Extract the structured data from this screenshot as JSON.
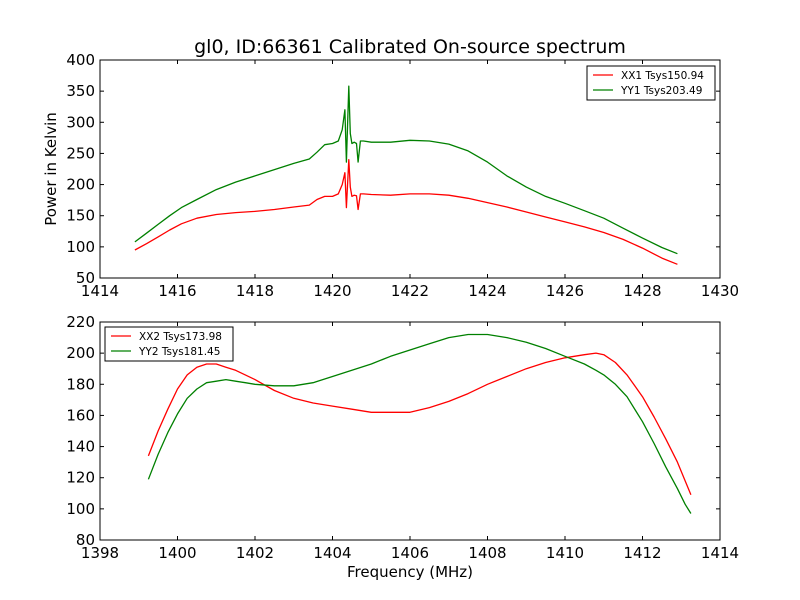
{
  "figure": {
    "title": "gl0, ID:66361 Calibrated On-source spectrum"
  },
  "chart_data": [
    {
      "type": "line",
      "title": "gl0, ID:66361 Calibrated On-source spectrum",
      "xlabel": "",
      "ylabel": "Power in Kelvin",
      "xlim": [
        1414,
        1430
      ],
      "ylim": [
        50,
        400
      ],
      "xticks": [
        1414,
        1416,
        1418,
        1420,
        1422,
        1424,
        1426,
        1428,
        1430
      ],
      "yticks": [
        50,
        100,
        150,
        200,
        250,
        300,
        350,
        400
      ],
      "grid": false,
      "legend": "top-right",
      "series": [
        {
          "name": "XX1 Tsys150.94",
          "color": "#ff0000",
          "x": [
            1414.9,
            1415.2,
            1415.5,
            1415.8,
            1416.1,
            1416.5,
            1417.0,
            1417.5,
            1418.0,
            1418.5,
            1419.0,
            1419.4,
            1419.6,
            1419.8,
            1420.0,
            1420.15,
            1420.25,
            1420.32,
            1420.36,
            1420.42,
            1420.46,
            1420.5,
            1420.56,
            1420.62,
            1420.66,
            1420.72,
            1420.8,
            1421.0,
            1421.5,
            1422.0,
            1422.5,
            1423.0,
            1423.5,
            1424.0,
            1424.5,
            1425.0,
            1425.5,
            1426.0,
            1426.5,
            1427.0,
            1427.5,
            1428.0,
            1428.5,
            1428.9
          ],
          "y": [
            95,
            105,
            116,
            127,
            137,
            146,
            152,
            155,
            157,
            160,
            164,
            167,
            176,
            181,
            181,
            185,
            200,
            219,
            163,
            240,
            196,
            181,
            183,
            182,
            160,
            185,
            185,
            184,
            183,
            185,
            185,
            183,
            178,
            171,
            164,
            156,
            148,
            140,
            132,
            123,
            112,
            98,
            82,
            72
          ]
        },
        {
          "name": "YY1 Tsys203.49",
          "color": "#008000",
          "x": [
            1414.9,
            1415.2,
            1415.5,
            1415.8,
            1416.1,
            1416.5,
            1417.0,
            1417.5,
            1418.0,
            1418.5,
            1419.0,
            1419.4,
            1419.6,
            1419.8,
            1420.0,
            1420.15,
            1420.25,
            1420.32,
            1420.36,
            1420.42,
            1420.46,
            1420.5,
            1420.56,
            1420.62,
            1420.66,
            1420.72,
            1420.8,
            1421.0,
            1421.5,
            1422.0,
            1422.5,
            1423.0,
            1423.5,
            1424.0,
            1424.5,
            1425.0,
            1425.5,
            1426.0,
            1426.5,
            1427.0,
            1427.5,
            1428.0,
            1428.5,
            1428.9
          ],
          "y": [
            108,
            122,
            136,
            150,
            163,
            176,
            192,
            204,
            214,
            224,
            234,
            241,
            252,
            264,
            266,
            270,
            288,
            320,
            236,
            358,
            282,
            266,
            268,
            266,
            236,
            270,
            270,
            268,
            268,
            271,
            270,
            265,
            254,
            236,
            214,
            196,
            181,
            170,
            158,
            146,
            130,
            114,
            99,
            89
          ]
        }
      ]
    },
    {
      "type": "line",
      "title": "",
      "xlabel": "Frequency (MHz)",
      "ylabel": "",
      "xlim": [
        1398,
        1414
      ],
      "ylim": [
        80,
        220
      ],
      "xticks": [
        1398,
        1400,
        1402,
        1404,
        1406,
        1408,
        1410,
        1412,
        1414
      ],
      "yticks": [
        80,
        100,
        120,
        140,
        160,
        180,
        200,
        220
      ],
      "grid": false,
      "legend": "top-left",
      "series": [
        {
          "name": "XX2 Tsys173.98",
          "color": "#ff0000",
          "x": [
            1399.25,
            1399.5,
            1399.75,
            1400.0,
            1400.25,
            1400.5,
            1400.75,
            1401.0,
            1401.25,
            1401.5,
            1401.75,
            1402.0,
            1402.5,
            1403.0,
            1403.5,
            1404.0,
            1404.5,
            1405.0,
            1405.5,
            1406.0,
            1406.5,
            1407.0,
            1407.5,
            1408.0,
            1408.5,
            1409.0,
            1409.5,
            1410.0,
            1410.5,
            1410.8,
            1411.0,
            1411.3,
            1411.6,
            1412.0,
            1412.3,
            1412.6,
            1412.9,
            1413.1,
            1413.25
          ],
          "y": [
            134,
            150,
            164,
            177,
            186,
            191,
            193,
            193,
            191,
            189,
            186,
            183,
            176,
            171,
            168,
            166,
            164,
            162,
            162,
            162,
            165,
            169,
            174,
            180,
            185,
            190,
            194,
            197,
            199,
            200,
            199,
            194,
            186,
            172,
            159,
            145,
            130,
            118,
            109
          ]
        },
        {
          "name": "YY2 Tsys181.45",
          "color": "#008000",
          "x": [
            1399.25,
            1399.5,
            1399.75,
            1400.0,
            1400.25,
            1400.5,
            1400.75,
            1401.0,
            1401.25,
            1401.5,
            1401.75,
            1402.0,
            1402.5,
            1403.0,
            1403.5,
            1404.0,
            1404.5,
            1405.0,
            1405.5,
            1406.0,
            1406.5,
            1407.0,
            1407.5,
            1408.0,
            1408.5,
            1409.0,
            1409.5,
            1410.0,
            1410.5,
            1410.8,
            1411.0,
            1411.3,
            1411.6,
            1412.0,
            1412.3,
            1412.6,
            1412.9,
            1413.1,
            1413.25
          ],
          "y": [
            119,
            135,
            149,
            161,
            171,
            177,
            181,
            182,
            183,
            182,
            181,
            180,
            179,
            179,
            181,
            185,
            189,
            193,
            198,
            202,
            206,
            210,
            212,
            212,
            210,
            207,
            203,
            198,
            193,
            189,
            186,
            180,
            172,
            156,
            142,
            127,
            113,
            103,
            97
          ]
        }
      ]
    }
  ]
}
